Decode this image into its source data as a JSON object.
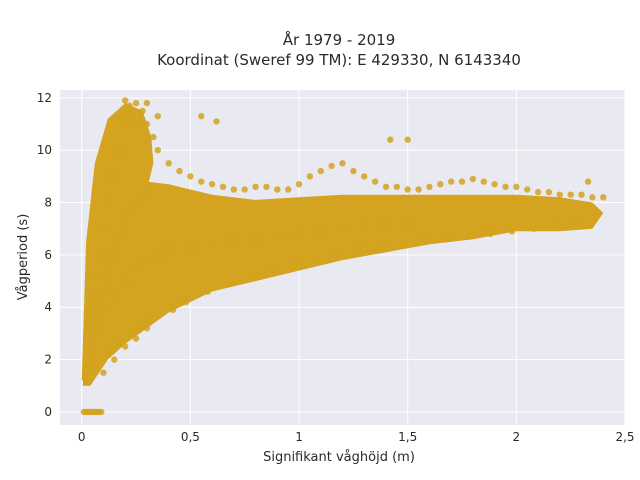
{
  "chart_data": {
    "type": "scatter",
    "title_line1": "År 1979 - 2019",
    "title_line2": "Koordinat (Sweref 99 TM): E 429330, N 6143340",
    "xlabel": "Signifikant våghöjd (m)",
    "ylabel": "Vågperiod (s)",
    "xlim": [
      -0.1,
      2.5
    ],
    "ylim": [
      -0.5,
      12.3
    ],
    "x_ticks": [
      0,
      0.5,
      1,
      1.5,
      2,
      2.5
    ],
    "x_tick_labels": [
      "0",
      "0,5",
      "1",
      "1,5",
      "2",
      "2,5"
    ],
    "y_ticks": [
      0,
      2,
      4,
      6,
      8,
      10,
      12
    ],
    "y_tick_labels": [
      "0",
      "2",
      "4",
      "6",
      "8",
      "10",
      "12"
    ],
    "grid": true,
    "legend": "none",
    "marker_color": "#D4A31F",
    "background_color": "#E9E9F1",
    "grid_color": "#FFFFFF",
    "series": [
      {
        "x": [
          0.01,
          0.02,
          0.03,
          0.04,
          0.05,
          0.06,
          0.07,
          0.08,
          0.09,
          0.02,
          0.03,
          0.04,
          0.05,
          0.06,
          0.07,
          0.08,
          0.09,
          0.1,
          0.12,
          0.15,
          0.18,
          0.2,
          0.22,
          0.25,
          0.28,
          0.3,
          0.33,
          0.35,
          0.4,
          0.45,
          0.5,
          0.55,
          0.6,
          0.65,
          0.7,
          0.75,
          0.8,
          0.85,
          0.9,
          0.95,
          1.0,
          1.05,
          1.1,
          1.15,
          1.2,
          1.25,
          1.3,
          1.35,
          1.4,
          1.45,
          1.5,
          1.55,
          1.6,
          1.65,
          1.7,
          1.75,
          1.8,
          1.85,
          1.9,
          1.95,
          2.0,
          2.05,
          2.1,
          2.15,
          2.2,
          2.25,
          2.3,
          2.35,
          2.4,
          0.1,
          0.15,
          0.2,
          0.25,
          0.3,
          0.1,
          0.15,
          0.2,
          0.25,
          0.3,
          0.35,
          0.4,
          0.5,
          0.6,
          0.7,
          0.8,
          0.9,
          1.0,
          1.1,
          1.2,
          1.3,
          1.4,
          1.5,
          0.2,
          0.22,
          0.3,
          0.35,
          0.55,
          0.62,
          1.42,
          1.5,
          2.33,
          0.05,
          0.07,
          0.12,
          0.17,
          0.24,
          0.31,
          0.42,
          0.48,
          0.58,
          0.68,
          0.78,
          0.88,
          0.98,
          1.08,
          1.18,
          1.28,
          1.38,
          1.48,
          1.58,
          1.68,
          1.78,
          1.88,
          1.98,
          2.08,
          2.18,
          2.28
        ],
        "y": [
          0,
          0,
          0,
          0,
          0,
          0,
          0,
          0,
          0,
          1.2,
          1.8,
          2.5,
          3.2,
          3.8,
          4.5,
          5.2,
          6.0,
          7.0,
          8.0,
          9.0,
          10.0,
          11.0,
          11.5,
          11.8,
          11.5,
          11.0,
          10.5,
          10.0,
          9.5,
          9.2,
          9.0,
          8.8,
          8.7,
          8.6,
          8.5,
          8.5,
          8.6,
          8.6,
          8.5,
          8.5,
          8.7,
          9.0,
          9.2,
          9.4,
          9.5,
          9.2,
          9.0,
          8.8,
          8.6,
          8.6,
          8.5,
          8.5,
          8.6,
          8.7,
          8.8,
          8.8,
          8.9,
          8.8,
          8.7,
          8.6,
          8.6,
          8.5,
          8.4,
          8.4,
          8.3,
          8.3,
          8.3,
          8.2,
          8.2,
          1.5,
          2.0,
          2.5,
          2.8,
          3.2,
          4.0,
          4.5,
          5.0,
          5.5,
          5.8,
          6.0,
          6.2,
          6.3,
          6.4,
          6.5,
          6.6,
          6.7,
          6.8,
          6.9,
          7.0,
          7.1,
          7.2,
          7.2,
          11.9,
          11.7,
          11.8,
          11.3,
          11.3,
          11.1,
          10.4,
          10.4,
          8.8,
          2.3,
          1.8,
          2.2,
          2.6,
          3.0,
          3.4,
          3.9,
          4.2,
          4.6,
          4.9,
          5.2,
          5.4,
          5.6,
          5.8,
          6.0,
          6.2,
          6.3,
          6.4,
          6.5,
          6.6,
          6.7,
          6.8,
          6.9,
          7.0,
          7.1,
          7.2
        ]
      }
    ]
  }
}
